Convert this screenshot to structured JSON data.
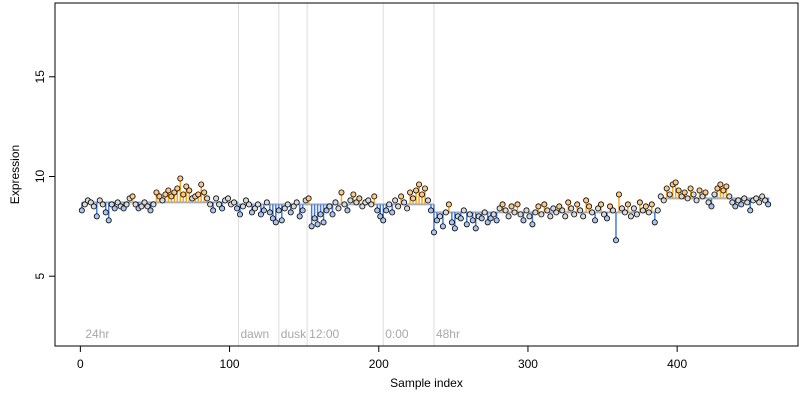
{
  "chart_data": {
    "type": "scatter",
    "title": "",
    "xlabel": "Sample index",
    "ylabel": "Expression",
    "xlim": [
      -17,
      481
    ],
    "ylim": [
      1.5,
      18.7
    ],
    "xticks": [
      0,
      100,
      200,
      300,
      400
    ],
    "yticks": [
      5,
      10,
      15
    ],
    "grid": false,
    "legend": "none",
    "colors": {
      "point_edge": "#000000",
      "point_fill_default": "#d9d9d9",
      "point_fill_high": "#fdc785",
      "point_fill_low": "#a9c4f0",
      "stem_high": "#f5a623",
      "stem_low": "#4a7bd0",
      "baseline": "#9db0cf",
      "divider": "#dcdcdc",
      "section_label": "#a8a8a8"
    },
    "sections": [
      {
        "label": "24hr",
        "x": 2
      },
      {
        "label": "dawn",
        "x": 106
      },
      {
        "label": "dusk",
        "x": 133
      },
      {
        "label": "12:00",
        "x": 152
      },
      {
        "label": "0:00",
        "x": 203
      },
      {
        "label": "48hr",
        "x": 237
      }
    ],
    "baselines": [
      {
        "x_start": 1,
        "x_end": 106,
        "y": 8.7
      },
      {
        "x_start": 106,
        "x_end": 237,
        "y": 8.6
      },
      {
        "x_start": 237,
        "x_end": 388,
        "y": 8.2
      },
      {
        "x_start": 388,
        "x_end": 462,
        "y": 8.9
      }
    ],
    "series": [
      {
        "points": [
          [
            1,
            8.3
          ],
          [
            3,
            8.6
          ],
          [
            5,
            8.8
          ],
          [
            7,
            8.7
          ],
          [
            9,
            8.5
          ],
          [
            11,
            8.0
          ],
          [
            13,
            8.8
          ],
          [
            15,
            8.6
          ],
          [
            17,
            8.2
          ],
          [
            19,
            7.8
          ],
          [
            21,
            8.6
          ],
          [
            23,
            8.4
          ],
          [
            25,
            8.7
          ],
          [
            27,
            8.5
          ],
          [
            29,
            8.4
          ],
          [
            31,
            8.6
          ],
          [
            33,
            8.9
          ],
          [
            35,
            9.0
          ],
          [
            37,
            8.6
          ],
          [
            39,
            8.4
          ],
          [
            41,
            8.5
          ],
          [
            43,
            8.7
          ],
          [
            45,
            8.5
          ],
          [
            47,
            8.3
          ],
          [
            49,
            8.6
          ],
          [
            51,
            9.2
          ],
          [
            53,
            9.0
          ],
          [
            55,
            8.8
          ],
          [
            57,
            9.1
          ],
          [
            59,
            9.3
          ],
          [
            61,
            9.0
          ],
          [
            63,
            9.2
          ],
          [
            65,
            9.4
          ],
          [
            67,
            9.9
          ],
          [
            69,
            9.1
          ],
          [
            71,
            9.5
          ],
          [
            73,
            9.3
          ],
          [
            75,
            8.9
          ],
          [
            77,
            9.0
          ],
          [
            79,
            9.1
          ],
          [
            81,
            9.6
          ],
          [
            83,
            9.2
          ],
          [
            85,
            8.9
          ],
          [
            87,
            8.6
          ],
          [
            89,
            8.3
          ],
          [
            91,
            8.9
          ],
          [
            93,
            8.6
          ],
          [
            95,
            8.4
          ],
          [
            97,
            8.8
          ],
          [
            99,
            8.9
          ],
          [
            101,
            8.6
          ],
          [
            103,
            8.7
          ],
          [
            105,
            8.4
          ],
          [
            107,
            8.1
          ],
          [
            109,
            8.5
          ],
          [
            111,
            8.8
          ],
          [
            113,
            8.6
          ],
          [
            115,
            8.2
          ],
          [
            117,
            8.4
          ],
          [
            119,
            8.6
          ],
          [
            121,
            8.1
          ],
          [
            123,
            8.3
          ],
          [
            125,
            8.7
          ],
          [
            127,
            8.2
          ],
          [
            129,
            7.9
          ],
          [
            131,
            7.7
          ],
          [
            133,
            8.3
          ],
          [
            135,
            7.8
          ],
          [
            137,
            8.4
          ],
          [
            139,
            8.6
          ],
          [
            141,
            8.2
          ],
          [
            143,
            8.5
          ],
          [
            145,
            8.7
          ],
          [
            147,
            8.0
          ],
          [
            149,
            8.3
          ],
          [
            151,
            8.8
          ],
          [
            153,
            8.9
          ],
          [
            155,
            7.5
          ],
          [
            157,
            7.9
          ],
          [
            159,
            7.6
          ],
          [
            161,
            8.1
          ],
          [
            163,
            7.7
          ],
          [
            165,
            8.3
          ],
          [
            167,
            8.5
          ],
          [
            169,
            8.1
          ],
          [
            171,
            8.7
          ],
          [
            173,
            8.4
          ],
          [
            175,
            9.2
          ],
          [
            177,
            8.6
          ],
          [
            179,
            8.3
          ],
          [
            181,
            8.8
          ],
          [
            183,
            9.1
          ],
          [
            185,
            8.7
          ],
          [
            187,
            8.9
          ],
          [
            189,
            8.5
          ],
          [
            191,
            8.7
          ],
          [
            193,
            8.8
          ],
          [
            195,
            8.6
          ],
          [
            197,
            9.0
          ],
          [
            199,
            8.3
          ],
          [
            201,
            8.0
          ],
          [
            203,
            7.8
          ],
          [
            205,
            8.3
          ],
          [
            207,
            8.6
          ],
          [
            209,
            8.2
          ],
          [
            211,
            8.8
          ],
          [
            213,
            8.5
          ],
          [
            215,
            9.0
          ],
          [
            217,
            8.7
          ],
          [
            219,
            8.4
          ],
          [
            221,
            9.2
          ],
          [
            223,
            8.9
          ],
          [
            225,
            9.3
          ],
          [
            227,
            9.6
          ],
          [
            229,
            9.1
          ],
          [
            231,
            9.4
          ],
          [
            233,
            8.8
          ],
          [
            235,
            8.3
          ],
          [
            237,
            7.2
          ],
          [
            239,
            7.8
          ],
          [
            241,
            8.0
          ],
          [
            243,
            7.5
          ],
          [
            245,
            8.2
          ],
          [
            247,
            8.6
          ],
          [
            249,
            7.7
          ],
          [
            251,
            7.4
          ],
          [
            253,
            8.0
          ],
          [
            255,
            7.9
          ],
          [
            257,
            8.3
          ],
          [
            259,
            7.6
          ],
          [
            261,
            8.1
          ],
          [
            263,
            7.8
          ],
          [
            265,
            7.4
          ],
          [
            267,
            8.0
          ],
          [
            269,
            7.9
          ],
          [
            271,
            8.2
          ],
          [
            273,
            7.7
          ],
          [
            275,
            7.9
          ],
          [
            277,
            8.1
          ],
          [
            279,
            7.8
          ],
          [
            281,
            8.4
          ],
          [
            283,
            8.6
          ],
          [
            285,
            8.3
          ],
          [
            287,
            8.0
          ],
          [
            289,
            8.5
          ],
          [
            291,
            8.2
          ],
          [
            293,
            8.6
          ],
          [
            295,
            8.1
          ],
          [
            297,
            7.8
          ],
          [
            299,
            8.3
          ],
          [
            301,
            8.0
          ],
          [
            303,
            7.6
          ],
          [
            305,
            8.2
          ],
          [
            307,
            8.5
          ],
          [
            309,
            8.1
          ],
          [
            311,
            8.6
          ],
          [
            313,
            8.3
          ],
          [
            315,
            8.0
          ],
          [
            317,
            8.4
          ],
          [
            319,
            8.2
          ],
          [
            321,
            8.5
          ],
          [
            323,
            8.3
          ],
          [
            325,
            8.0
          ],
          [
            327,
            8.7
          ],
          [
            329,
            8.4
          ],
          [
            331,
            8.1
          ],
          [
            333,
            8.6
          ],
          [
            335,
            8.3
          ],
          [
            337,
            8.0
          ],
          [
            339,
            8.8
          ],
          [
            341,
            8.5
          ],
          [
            343,
            8.2
          ],
          [
            345,
            7.8
          ],
          [
            347,
            8.4
          ],
          [
            349,
            8.6
          ],
          [
            351,
            8.1
          ],
          [
            353,
            7.9
          ],
          [
            355,
            8.5
          ],
          [
            357,
            8.3
          ],
          [
            359,
            6.8
          ],
          [
            361,
            9.1
          ],
          [
            363,
            8.4
          ],
          [
            365,
            8.2
          ],
          [
            367,
            8.6
          ],
          [
            369,
            8.0
          ],
          [
            371,
            8.4
          ],
          [
            373,
            8.1
          ],
          [
            375,
            8.7
          ],
          [
            377,
            8.3
          ],
          [
            379,
            8.5
          ],
          [
            381,
            8.2
          ],
          [
            383,
            8.6
          ],
          [
            385,
            7.7
          ],
          [
            387,
            8.3
          ],
          [
            389,
            9.0
          ],
          [
            391,
            8.8
          ],
          [
            393,
            9.4
          ],
          [
            395,
            9.1
          ],
          [
            397,
            9.6
          ],
          [
            399,
            9.7
          ],
          [
            401,
            9.3
          ],
          [
            403,
            9.0
          ],
          [
            405,
            9.2
          ],
          [
            407,
            8.9
          ],
          [
            409,
            9.4
          ],
          [
            411,
            9.1
          ],
          [
            413,
            8.8
          ],
          [
            415,
            9.3
          ],
          [
            417,
            9.0
          ],
          [
            419,
            9.2
          ],
          [
            421,
            8.7
          ],
          [
            423,
            8.5
          ],
          [
            425,
            9.1
          ],
          [
            427,
            9.4
          ],
          [
            429,
            9.6
          ],
          [
            431,
            9.3
          ],
          [
            433,
            9.5
          ],
          [
            435,
            9.0
          ],
          [
            437,
            8.7
          ],
          [
            439,
            8.5
          ],
          [
            441,
            8.8
          ],
          [
            443,
            8.6
          ],
          [
            445,
            8.9
          ],
          [
            447,
            8.7
          ],
          [
            449,
            8.3
          ],
          [
            451,
            8.8
          ],
          [
            453,
            8.9
          ],
          [
            455,
            8.7
          ],
          [
            457,
            9.0
          ],
          [
            459,
            8.8
          ],
          [
            461,
            8.6
          ]
        ]
      }
    ]
  }
}
